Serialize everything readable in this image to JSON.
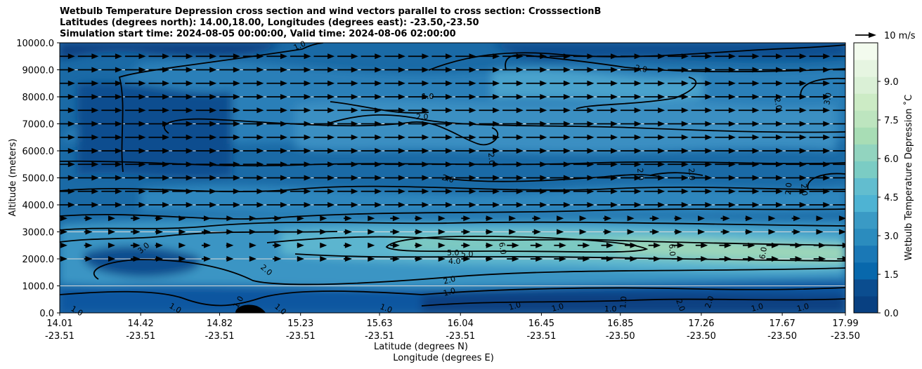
{
  "title": {
    "line1": "Wetbulb Temperature Depression cross section and wind vectors parallel to cross section: CrosssectionB",
    "line2": "Latitudes (degrees north): 14.00,18.00, Longitudes (degrees east): -23.50,-23.50",
    "line3": "Simulation start time: 2024-08-05 00:00:00, Valid time: 2024-08-06 02:00:00"
  },
  "chart_data": {
    "type": "heatmap",
    "ylabel": "Altitude (meters)",
    "xlabel_lat": "Latitude (degrees N)",
    "xlabel_lon": "Longitude (degrees E)",
    "ylim": [
      0,
      10000
    ],
    "y_ticks": [
      "0.0",
      "1000.0",
      "2000.0",
      "3000.0",
      "4000.0",
      "5000.0",
      "6000.0",
      "7000.0",
      "8000.0",
      "9000.0",
      "10000.0"
    ],
    "y_tick_values": [
      0,
      1000,
      2000,
      3000,
      4000,
      5000,
      6000,
      7000,
      8000,
      9000,
      10000
    ],
    "x_ticks": [
      {
        "lat": "14.01",
        "lon": "-23.51"
      },
      {
        "lat": "14.42",
        "lon": "-23.51"
      },
      {
        "lat": "14.82",
        "lon": "-23.51"
      },
      {
        "lat": "15.23",
        "lon": "-23.51"
      },
      {
        "lat": "15.63",
        "lon": "-23.51"
      },
      {
        "lat": "16.04",
        "lon": "-23.51"
      },
      {
        "lat": "16.45",
        "lon": "-23.51"
      },
      {
        "lat": "16.85",
        "lon": "-23.50"
      },
      {
        "lat": "17.26",
        "lon": "-23.50"
      },
      {
        "lat": "17.67",
        "lon": "-23.50"
      },
      {
        "lat": "17.99",
        "lon": "-23.50"
      }
    ],
    "x_tick_lat_values": [
      14.01,
      14.42,
      14.82,
      15.23,
      15.63,
      16.04,
      16.45,
      16.85,
      17.26,
      17.67,
      17.99
    ],
    "colorbar": {
      "label": "Wetbulb Temperature Depression ˚C",
      "range": [
        0,
        10.5
      ],
      "ticks": [
        "0.0",
        "1.5",
        "3.0",
        "4.5",
        "6.0",
        "7.5",
        "9.0"
      ],
      "tick_values": [
        0,
        1.5,
        3,
        4.5,
        6,
        7.5,
        9
      ],
      "colors": [
        "#084081",
        "#0b4d8f",
        "#0868ac",
        "#1a78b6",
        "#2b8cbe",
        "#3a9ac5",
        "#4eb3d3",
        "#62bdcf",
        "#7bccc4",
        "#92d4bf",
        "#a8ddb5",
        "#bde5bf",
        "#ccebc5",
        "#daf0d6",
        "#e6f5e1",
        "#f3fbee"
      ]
    },
    "quiver_key": {
      "label": "10 m/s",
      "speed": 10
    },
    "grid": "horizontal",
    "contour_labels": [
      "1.0",
      "2.0",
      "3.0",
      "4.0",
      "5.0",
      "6.0"
    ],
    "zones_approx": [
      {
        "alt_from": 0,
        "alt_to": 1000,
        "value": 0.8
      },
      {
        "alt_from": 1000,
        "alt_to": 2000,
        "value": 3.5
      },
      {
        "alt_from": 2000,
        "alt_to": 3000,
        "value": 5.5
      },
      {
        "alt_from": 3000,
        "alt_to": 4000,
        "value": 2.5
      },
      {
        "alt_from": 4000,
        "alt_to": 10000,
        "value": 1.8
      }
    ],
    "wind_vectors": {
      "levels_m": [
        2000,
        2500,
        3000,
        3500,
        4000,
        4500,
        5000,
        5500,
        6000,
        6500,
        7000,
        7500,
        8000,
        8500,
        9000,
        9500
      ],
      "typical_speed_upper": 8,
      "typical_speed_lower": 3
    }
  }
}
